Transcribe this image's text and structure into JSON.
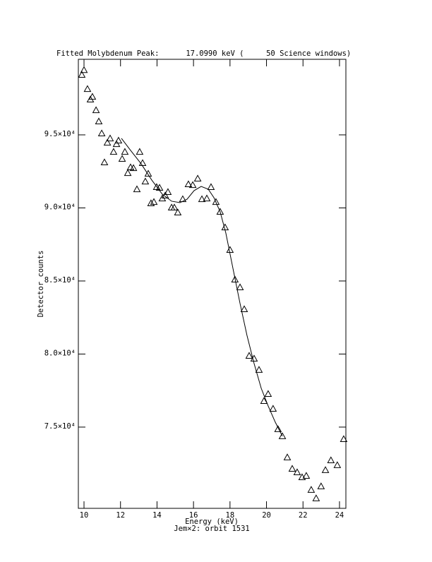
{
  "chart_data": {
    "type": "scatter",
    "title": "Fitted Molybdenum Peak:      17.0990 keV (     50 Science windows)",
    "xlabel": "Energy (keV)",
    "footnote": "Jem×2: orbit 1531",
    "ylabel": "Detector counts",
    "color": "#000000",
    "xlim": [
      9.69,
      24.35
    ],
    "ylim": [
      69440,
      100170
    ],
    "xticks": [
      10,
      12,
      14,
      16,
      18,
      20,
      22,
      24
    ],
    "yticks": [
      {
        "value": 75000,
        "label": "7.5×10⁴"
      },
      {
        "value": 80000,
        "label": "8.0×10⁴"
      },
      {
        "value": 85000,
        "label": "8.5×10⁴"
      },
      {
        "value": 90000,
        "label": "9.0×10⁴"
      },
      {
        "value": 95000,
        "label": "9.5×10⁴"
      }
    ],
    "series": [
      {
        "type": "scatter",
        "marker": "triangle",
        "x": [
          9.88,
          10.0,
          10.19,
          10.35,
          10.46,
          10.66,
          10.81,
          10.97,
          11.12,
          11.28,
          11.43,
          11.62,
          11.78,
          11.89,
          12.09,
          12.24,
          12.4,
          12.55,
          12.71,
          12.9,
          13.05,
          13.21,
          13.36,
          13.52,
          13.67,
          13.83,
          13.98,
          14.14,
          14.29,
          14.45,
          14.6,
          14.8,
          14.95,
          15.14,
          15.41,
          15.72,
          15.96,
          16.23,
          16.46,
          16.73,
          16.96,
          17.23,
          17.46,
          17.73,
          18.0,
          18.27,
          18.55,
          18.78,
          19.05,
          19.32,
          19.59,
          19.86,
          20.09,
          20.36,
          20.63,
          20.87,
          21.14,
          21.41,
          21.68,
          21.95,
          22.18,
          22.45,
          22.72,
          22.99,
          23.23,
          23.53,
          23.88,
          24.23
        ],
        "values": [
          99110,
          99440,
          98140,
          97420,
          97610,
          96690,
          95920,
          95100,
          93120,
          94470,
          94760,
          93840,
          94370,
          94610,
          93360,
          93840,
          92390,
          92780,
          92730,
          91280,
          93840,
          93070,
          91810,
          92340,
          90320,
          90410,
          91430,
          91380,
          90650,
          90850,
          91090,
          90030,
          90030,
          89690,
          90600,
          91620,
          91570,
          92010,
          90600,
          90650,
          91430,
          90410,
          89740,
          88670,
          87130,
          85100,
          84570,
          83070,
          79880,
          79690,
          78920,
          76790,
          77270,
          76260,
          74860,
          74380,
          72930,
          72150,
          71910,
          71570,
          71670,
          70710,
          70130,
          70950,
          72060,
          72730,
          72400,
          74180
        ]
      },
      {
        "type": "line",
        "x": [
          12.05,
          12.55,
          13.13,
          13.71,
          14.29,
          14.8,
          15.26,
          15.65,
          16.03,
          16.42,
          16.81,
          17.12,
          17.46,
          17.77,
          18.16,
          18.55,
          18.93,
          19.32,
          19.71,
          20.09,
          20.48,
          20.87
        ],
        "values": [
          94760,
          93940,
          93020,
          91910,
          90940,
          90460,
          90360,
          90600,
          91180,
          91470,
          91280,
          90700,
          89740,
          88290,
          85870,
          83460,
          81280,
          79350,
          77660,
          76450,
          75340,
          74380
        ]
      }
    ]
  }
}
